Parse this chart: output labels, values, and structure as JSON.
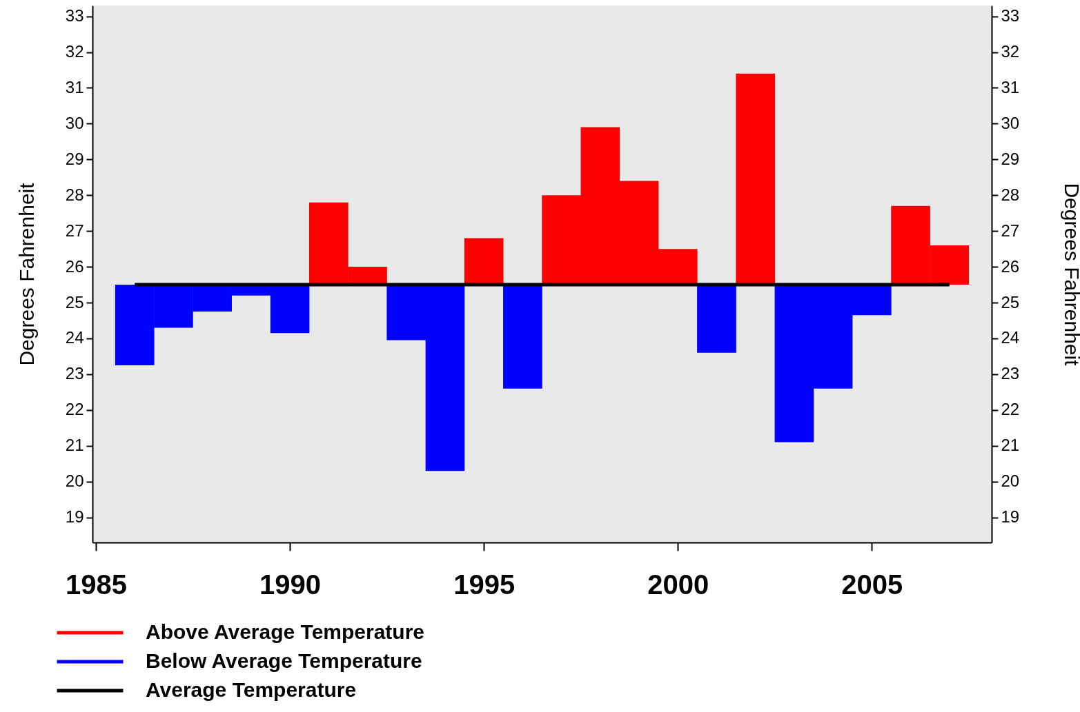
{
  "chart_data": {
    "type": "bar",
    "ylabel": "Degrees Fahrenheit",
    "y2label": "Degrees Fahrenheit",
    "x": [
      1986,
      1987,
      1988,
      1989,
      1990,
      1991,
      1992,
      1993,
      1994,
      1995,
      1996,
      1997,
      1998,
      1999,
      2000,
      2001,
      2002,
      2003,
      2004,
      2005,
      2006,
      2007
    ],
    "series": [
      {
        "name": "Above Average Temperature",
        "color": "#ff0000",
        "values": [
          null,
          null,
          null,
          null,
          null,
          2.3,
          0.5,
          null,
          null,
          1.3,
          null,
          2.5,
          4.4,
          2.9,
          1.0,
          null,
          5.9,
          null,
          null,
          null,
          2.2,
          1.1
        ],
        "base": [
          null,
          null,
          null,
          null,
          null,
          25.5,
          25.5,
          null,
          null,
          25.5,
          null,
          25.5,
          25.5,
          25.5,
          25.5,
          null,
          25.5,
          null,
          null,
          null,
          25.5,
          25.5
        ]
      },
      {
        "name": "Below Average Temperature",
        "color": "#0000ff",
        "values": [
          -2.25,
          -1.2,
          -0.75,
          -0.3,
          -1.35,
          null,
          null,
          -1.55,
          -5.2,
          null,
          -2.9,
          null,
          null,
          null,
          null,
          -1.9,
          null,
          -4.4,
          -2.9,
          -0.85,
          null,
          null
        ],
        "base": [
          25.5,
          25.5,
          25.5,
          25.5,
          25.5,
          null,
          null,
          25.5,
          25.5,
          null,
          25.5,
          null,
          null,
          null,
          null,
          25.5,
          null,
          25.5,
          25.5,
          25.5,
          null,
          null
        ]
      },
      {
        "name": "Average Temperature",
        "type": "line",
        "color": "#000000",
        "x": [
          1986,
          2007
        ],
        "values": [
          25.5,
          25.5
        ]
      }
    ],
    "xlim": [
      1985,
      2008
    ],
    "xticks": [
      1985,
      1990,
      1995,
      2000,
      2005
    ],
    "ylim": [
      18.3,
      33.3
    ],
    "yticks": [
      19,
      20,
      21,
      22,
      23,
      24,
      25,
      26,
      27,
      28,
      29,
      30,
      31,
      32,
      33
    ],
    "y2lim": [
      18.3,
      33.3
    ],
    "y2ticks": [
      19,
      20,
      21,
      22,
      23,
      24,
      25,
      26,
      27,
      28,
      29,
      30,
      31,
      32,
      33
    ],
    "legend": "bottom left",
    "grid": false,
    "marker": "none",
    "line_style": "solid"
  }
}
